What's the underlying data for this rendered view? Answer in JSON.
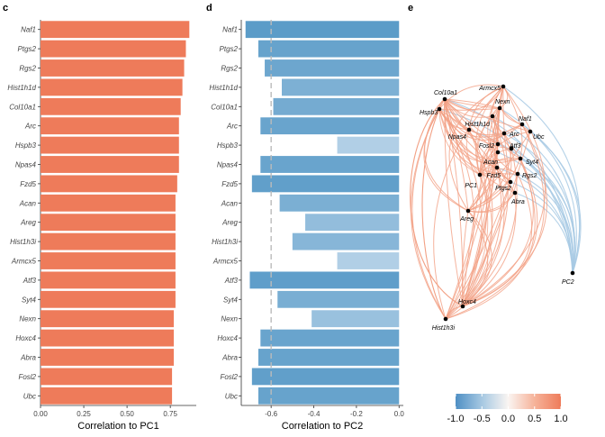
{
  "panels": {
    "c": {
      "letter": "c"
    },
    "d": {
      "letter": "d"
    },
    "e": {
      "letter": "e"
    }
  },
  "colors": {
    "positive": "#EE7B5A",
    "pos_light": "#F4A27F",
    "negative": "#5D9BC9",
    "neg_light": "#B9D4E9",
    "refline": "#bbbbbb",
    "pos_edge": "#F2A084",
    "neg_edge": "#A8CAE4"
  },
  "chart_data": [
    {
      "type": "bar",
      "orientation": "horizontal",
      "categories": [
        "Naf1",
        "Ptgs2",
        "Rgs2",
        "Hist1h1d",
        "Col10a1",
        "Arc",
        "Hspb3",
        "Npas4",
        "Fzd5",
        "Acan",
        "Areg",
        "Hist1h3i",
        "Armcx5",
        "Atf3",
        "Syt4",
        "Nexn",
        "Hoxc4",
        "Abra",
        "Fosl2",
        "Ubc"
      ],
      "values": [
        0.86,
        0.84,
        0.83,
        0.82,
        0.81,
        0.8,
        0.8,
        0.8,
        0.79,
        0.78,
        0.78,
        0.78,
        0.78,
        0.78,
        0.78,
        0.77,
        0.77,
        0.77,
        0.76,
        0.76
      ],
      "xlabel": "Correlation to PC1",
      "xlim": [
        0,
        0.9
      ],
      "xticks": [
        "0.00",
        "0.25",
        "0.50",
        "0.75"
      ],
      "xtick_values": [
        0,
        0.25,
        0.5,
        0.75
      ]
    },
    {
      "type": "bar",
      "orientation": "horizontal",
      "categories": [
        "Naf1",
        "Ptgs2",
        "Rgs2",
        "Hist1h1d",
        "Col10a1",
        "Arc",
        "Hspb3",
        "Npas4",
        "Fzd5",
        "Acan",
        "Areg",
        "Hist1h3i",
        "Armcx5",
        "Atf3",
        "Syt4",
        "Nexn",
        "Hoxc4",
        "Abra",
        "Fosl2",
        "Ubc"
      ],
      "values": [
        -0.72,
        -0.66,
        -0.63,
        -0.55,
        -0.59,
        -0.65,
        -0.29,
        -0.65,
        -0.69,
        -0.56,
        -0.44,
        -0.5,
        -0.29,
        -0.7,
        -0.57,
        -0.41,
        -0.65,
        -0.66,
        -0.69,
        -0.66
      ],
      "xlabel": "Correlation to PC2",
      "xlim": [
        -0.74,
        0.02
      ],
      "xticks": [
        "-0.6",
        "-0.4",
        "-0.2",
        "0.0"
      ],
      "xtick_values": [
        -0.6,
        -0.4,
        -0.2,
        0
      ],
      "reference_line": -0.6
    },
    {
      "type": "network",
      "nodes": [
        {
          "name": "Col10a1",
          "x": 0.0,
          "y": 0.0
        },
        {
          "name": "Hspb3",
          "x": 0.0,
          "y": 0.0
        },
        {
          "name": "Armcx5",
          "x": 0.0,
          "y": 0.0
        },
        {
          "name": "Nexn",
          "x": 0.0,
          "y": 0.0
        },
        {
          "name": "Hist1h1d",
          "x": 0.0,
          "y": 0.0
        },
        {
          "name": "Naf1",
          "x": 0.0,
          "y": 0.0
        },
        {
          "name": "Ubc",
          "x": 0.0,
          "y": 0.0
        },
        {
          "name": "Npas4",
          "x": 0.0,
          "y": 0.0
        },
        {
          "name": "Arc",
          "x": 0.0,
          "y": 0.0
        },
        {
          "name": "Fosl2",
          "x": 0.0,
          "y": 0.0
        },
        {
          "name": "Atf3",
          "x": 0.0,
          "y": 0.0
        },
        {
          "name": "Syt4",
          "x": 0.0,
          "y": 0.0
        },
        {
          "name": "Acan",
          "x": 0.0,
          "y": 0.0
        },
        {
          "name": "Fzd5",
          "x": 0.0,
          "y": 0.0
        },
        {
          "name": "Rgs2",
          "x": 0.0,
          "y": 0.0
        },
        {
          "name": "PC1",
          "x": 0.0,
          "y": 0.0
        },
        {
          "name": "Ptgs2",
          "x": 0.0,
          "y": 0.0
        },
        {
          "name": "Abra",
          "x": 0.0,
          "y": 0.0
        },
        {
          "name": "Areg",
          "x": 0.0,
          "y": 0.0
        },
        {
          "name": "PC2",
          "x": 0.0,
          "y": 0.0
        },
        {
          "name": "Hoxc4",
          "x": 0.0,
          "y": 0.0
        },
        {
          "name": "Hist1h3i",
          "x": 0.0,
          "y": 0.0
        }
      ],
      "legend": {
        "ticks": [
          "-1.0",
          "-0.5",
          "0.0",
          "0.5",
          "1.0"
        ],
        "tick_values": [
          -1,
          -0.5,
          0,
          0.5,
          1
        ],
        "placement": "bottom"
      }
    }
  ]
}
